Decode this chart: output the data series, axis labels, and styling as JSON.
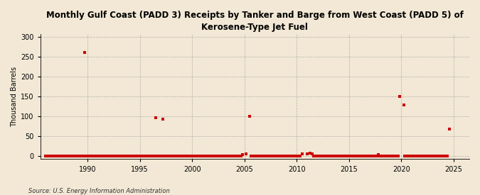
{
  "title": "Monthly Gulf Coast (PADD 3) Receipts by Tanker and Barge from West Coast (PADD 5) of\nKerosene-Type Jet Fuel",
  "ylabel": "Thousand Barrels",
  "source": "Source: U.S. Energy Information Administration",
  "background_color": "#f2e8d5",
  "plot_bg_color": "#f2e8d5",
  "marker_color": "#cc0000",
  "marker_size": 3,
  "ylim": [
    -8,
    308
  ],
  "yticks": [
    0,
    50,
    100,
    150,
    200,
    250,
    300
  ],
  "xlim": [
    1985.5,
    2026.5
  ],
  "xticks": [
    1990,
    1995,
    2000,
    2005,
    2010,
    2015,
    2020,
    2025
  ],
  "data_points": [
    [
      1986.0,
      0
    ],
    [
      1986.1,
      0
    ],
    [
      1986.2,
      0
    ],
    [
      1986.3,
      0
    ],
    [
      1986.4,
      0
    ],
    [
      1986.5,
      0
    ],
    [
      1986.6,
      0
    ],
    [
      1986.7,
      0
    ],
    [
      1986.8,
      0
    ],
    [
      1986.9,
      0
    ],
    [
      1987.0,
      0
    ],
    [
      1987.1,
      0
    ],
    [
      1987.2,
      0
    ],
    [
      1987.3,
      0
    ],
    [
      1987.4,
      0
    ],
    [
      1987.5,
      0
    ],
    [
      1987.6,
      0
    ],
    [
      1987.7,
      0
    ],
    [
      1987.8,
      0
    ],
    [
      1987.9,
      0
    ],
    [
      1988.0,
      0
    ],
    [
      1988.1,
      0
    ],
    [
      1988.2,
      0
    ],
    [
      1988.3,
      0
    ],
    [
      1988.4,
      0
    ],
    [
      1988.5,
      0
    ],
    [
      1988.6,
      0
    ],
    [
      1988.7,
      0
    ],
    [
      1988.8,
      0
    ],
    [
      1988.9,
      0
    ],
    [
      1989.0,
      0
    ],
    [
      1989.1,
      0
    ],
    [
      1989.2,
      0
    ],
    [
      1989.3,
      0
    ],
    [
      1989.4,
      0
    ],
    [
      1989.5,
      0
    ],
    [
      1989.6,
      0
    ],
    [
      1989.7,
      0
    ],
    [
      1989.8,
      0
    ],
    [
      1989.9,
      0
    ],
    [
      1989.75,
      260
    ],
    [
      1990.0,
      0
    ],
    [
      1990.1,
      0
    ],
    [
      1990.2,
      0
    ],
    [
      1990.3,
      0
    ],
    [
      1990.4,
      0
    ],
    [
      1990.5,
      0
    ],
    [
      1990.6,
      0
    ],
    [
      1990.7,
      0
    ],
    [
      1990.8,
      0
    ],
    [
      1990.9,
      0
    ],
    [
      1991.0,
      0
    ],
    [
      1991.1,
      0
    ],
    [
      1991.2,
      0
    ],
    [
      1991.3,
      0
    ],
    [
      1991.4,
      0
    ],
    [
      1991.5,
      0
    ],
    [
      1991.6,
      0
    ],
    [
      1991.7,
      0
    ],
    [
      1991.8,
      0
    ],
    [
      1991.9,
      0
    ],
    [
      1992.0,
      0
    ],
    [
      1992.1,
      0
    ],
    [
      1992.2,
      0
    ],
    [
      1992.3,
      0
    ],
    [
      1992.4,
      0
    ],
    [
      1992.5,
      0
    ],
    [
      1992.6,
      0
    ],
    [
      1992.7,
      0
    ],
    [
      1992.8,
      0
    ],
    [
      1992.9,
      0
    ],
    [
      1993.0,
      0
    ],
    [
      1993.1,
      0
    ],
    [
      1993.2,
      0
    ],
    [
      1993.3,
      0
    ],
    [
      1993.4,
      0
    ],
    [
      1993.5,
      0
    ],
    [
      1993.6,
      0
    ],
    [
      1993.7,
      0
    ],
    [
      1993.8,
      0
    ],
    [
      1993.9,
      0
    ],
    [
      1994.0,
      0
    ],
    [
      1994.1,
      0
    ],
    [
      1994.2,
      0
    ],
    [
      1994.3,
      0
    ],
    [
      1994.4,
      0
    ],
    [
      1994.5,
      0
    ],
    [
      1994.6,
      0
    ],
    [
      1994.7,
      0
    ],
    [
      1994.8,
      0
    ],
    [
      1994.9,
      0
    ],
    [
      1995.0,
      0
    ],
    [
      1995.1,
      0
    ],
    [
      1995.2,
      0
    ],
    [
      1995.3,
      0
    ],
    [
      1995.4,
      0
    ],
    [
      1995.5,
      0
    ],
    [
      1995.6,
      0
    ],
    [
      1995.7,
      0
    ],
    [
      1995.8,
      0
    ],
    [
      1995.9,
      0
    ],
    [
      1996.0,
      0
    ],
    [
      1996.1,
      0
    ],
    [
      1996.2,
      0
    ],
    [
      1996.3,
      0
    ],
    [
      1996.4,
      0
    ],
    [
      1996.5,
      97
    ],
    [
      1997.2,
      93
    ],
    [
      1996.6,
      0
    ],
    [
      1996.7,
      0
    ],
    [
      1996.8,
      0
    ],
    [
      1996.9,
      0
    ],
    [
      1997.0,
      0
    ],
    [
      1997.3,
      0
    ],
    [
      1997.4,
      0
    ],
    [
      1997.5,
      0
    ],
    [
      1997.6,
      0
    ],
    [
      1997.7,
      0
    ],
    [
      1997.8,
      0
    ],
    [
      1997.9,
      0
    ],
    [
      1998.0,
      0
    ],
    [
      1998.1,
      0
    ],
    [
      1998.2,
      0
    ],
    [
      1998.3,
      0
    ],
    [
      1998.4,
      0
    ],
    [
      1998.5,
      0
    ],
    [
      1998.6,
      0
    ],
    [
      1998.7,
      0
    ],
    [
      1998.8,
      0
    ],
    [
      1998.9,
      0
    ],
    [
      1999.0,
      0
    ],
    [
      1999.1,
      0
    ],
    [
      1999.2,
      0
    ],
    [
      1999.3,
      0
    ],
    [
      1999.4,
      0
    ],
    [
      1999.5,
      0
    ],
    [
      1999.6,
      0
    ],
    [
      1999.7,
      0
    ],
    [
      1999.8,
      0
    ],
    [
      1999.9,
      0
    ],
    [
      2000.0,
      0
    ],
    [
      2000.1,
      0
    ],
    [
      2000.2,
      0
    ],
    [
      2000.3,
      0
    ],
    [
      2000.4,
      0
    ],
    [
      2000.5,
      0
    ],
    [
      2000.6,
      0
    ],
    [
      2000.7,
      0
    ],
    [
      2000.8,
      0
    ],
    [
      2000.9,
      0
    ],
    [
      2001.0,
      0
    ],
    [
      2001.1,
      0
    ],
    [
      2001.2,
      0
    ],
    [
      2001.3,
      0
    ],
    [
      2001.4,
      0
    ],
    [
      2001.5,
      0
    ],
    [
      2001.6,
      0
    ],
    [
      2001.7,
      0
    ],
    [
      2001.8,
      0
    ],
    [
      2001.9,
      0
    ],
    [
      2002.0,
      0
    ],
    [
      2002.1,
      0
    ],
    [
      2002.2,
      0
    ],
    [
      2002.3,
      0
    ],
    [
      2002.4,
      0
    ],
    [
      2002.5,
      0
    ],
    [
      2002.6,
      0
    ],
    [
      2002.7,
      0
    ],
    [
      2002.8,
      0
    ],
    [
      2002.9,
      0
    ],
    [
      2003.0,
      0
    ],
    [
      2003.1,
      0
    ],
    [
      2003.2,
      0
    ],
    [
      2003.3,
      0
    ],
    [
      2003.4,
      0
    ],
    [
      2003.5,
      0
    ],
    [
      2003.6,
      0
    ],
    [
      2003.7,
      0
    ],
    [
      2003.8,
      0
    ],
    [
      2003.9,
      0
    ],
    [
      2004.0,
      0
    ],
    [
      2004.1,
      0
    ],
    [
      2004.2,
      0
    ],
    [
      2004.3,
      0
    ],
    [
      2004.4,
      0
    ],
    [
      2004.5,
      0
    ],
    [
      2004.6,
      0
    ],
    [
      2004.7,
      0
    ],
    [
      2004.83,
      3
    ],
    [
      2005.17,
      5
    ],
    [
      2005.5,
      100
    ],
    [
      2005.6,
      0
    ],
    [
      2005.7,
      0
    ],
    [
      2005.8,
      0
    ],
    [
      2005.9,
      0
    ],
    [
      2006.0,
      0
    ],
    [
      2006.1,
      0
    ],
    [
      2006.2,
      0
    ],
    [
      2006.3,
      0
    ],
    [
      2006.4,
      0
    ],
    [
      2006.5,
      0
    ],
    [
      2006.6,
      0
    ],
    [
      2006.7,
      0
    ],
    [
      2006.8,
      0
    ],
    [
      2006.9,
      0
    ],
    [
      2007.0,
      0
    ],
    [
      2007.1,
      0
    ],
    [
      2007.2,
      0
    ],
    [
      2007.3,
      0
    ],
    [
      2007.4,
      0
    ],
    [
      2007.5,
      0
    ],
    [
      2007.6,
      0
    ],
    [
      2007.7,
      0
    ],
    [
      2007.8,
      0
    ],
    [
      2007.9,
      0
    ],
    [
      2008.0,
      0
    ],
    [
      2008.1,
      0
    ],
    [
      2008.2,
      0
    ],
    [
      2008.3,
      0
    ],
    [
      2008.4,
      0
    ],
    [
      2008.5,
      0
    ],
    [
      2008.6,
      0
    ],
    [
      2008.7,
      0
    ],
    [
      2008.8,
      0
    ],
    [
      2008.9,
      0
    ],
    [
      2009.0,
      0
    ],
    [
      2009.1,
      0
    ],
    [
      2009.2,
      0
    ],
    [
      2009.3,
      0
    ],
    [
      2009.4,
      0
    ],
    [
      2009.5,
      0
    ],
    [
      2009.6,
      0
    ],
    [
      2009.7,
      0
    ],
    [
      2009.8,
      0
    ],
    [
      2009.9,
      0
    ],
    [
      2010.0,
      0
    ],
    [
      2010.1,
      0
    ],
    [
      2010.2,
      0
    ],
    [
      2010.3,
      0
    ],
    [
      2010.5,
      5
    ],
    [
      2011.0,
      6
    ],
    [
      2011.25,
      8
    ],
    [
      2011.5,
      5
    ],
    [
      2011.6,
      0
    ],
    [
      2011.7,
      0
    ],
    [
      2011.8,
      0
    ],
    [
      2011.9,
      0
    ],
    [
      2012.0,
      0
    ],
    [
      2012.1,
      0
    ],
    [
      2012.2,
      0
    ],
    [
      2012.3,
      0
    ],
    [
      2012.4,
      0
    ],
    [
      2012.5,
      0
    ],
    [
      2012.6,
      0
    ],
    [
      2012.7,
      0
    ],
    [
      2012.8,
      0
    ],
    [
      2012.9,
      0
    ],
    [
      2013.0,
      0
    ],
    [
      2013.1,
      0
    ],
    [
      2013.2,
      0
    ],
    [
      2013.3,
      0
    ],
    [
      2013.4,
      0
    ],
    [
      2013.5,
      0
    ],
    [
      2013.6,
      0
    ],
    [
      2013.7,
      0
    ],
    [
      2013.8,
      0
    ],
    [
      2013.9,
      0
    ],
    [
      2014.0,
      0
    ],
    [
      2014.1,
      0
    ],
    [
      2014.2,
      0
    ],
    [
      2014.3,
      0
    ],
    [
      2014.4,
      0
    ],
    [
      2014.5,
      0
    ],
    [
      2014.6,
      0
    ],
    [
      2014.7,
      0
    ],
    [
      2014.8,
      0
    ],
    [
      2014.9,
      0
    ],
    [
      2015.0,
      0
    ],
    [
      2015.1,
      0
    ],
    [
      2015.2,
      0
    ],
    [
      2015.3,
      0
    ],
    [
      2015.4,
      0
    ],
    [
      2015.5,
      0
    ],
    [
      2015.6,
      0
    ],
    [
      2015.7,
      0
    ],
    [
      2015.8,
      0
    ],
    [
      2015.9,
      0
    ],
    [
      2016.0,
      0
    ],
    [
      2016.1,
      0
    ],
    [
      2016.2,
      0
    ],
    [
      2016.3,
      0
    ],
    [
      2016.4,
      0
    ],
    [
      2016.5,
      0
    ],
    [
      2016.6,
      0
    ],
    [
      2016.7,
      0
    ],
    [
      2016.8,
      0
    ],
    [
      2016.9,
      0
    ],
    [
      2017.0,
      0
    ],
    [
      2017.1,
      0
    ],
    [
      2017.2,
      0
    ],
    [
      2017.3,
      0
    ],
    [
      2017.4,
      0
    ],
    [
      2017.5,
      0
    ],
    [
      2017.6,
      0
    ],
    [
      2017.7,
      0
    ],
    [
      2017.83,
      3
    ],
    [
      2017.9,
      0
    ],
    [
      2018.0,
      0
    ],
    [
      2018.1,
      0
    ],
    [
      2018.2,
      0
    ],
    [
      2018.3,
      0
    ],
    [
      2018.4,
      0
    ],
    [
      2018.5,
      0
    ],
    [
      2018.6,
      0
    ],
    [
      2018.7,
      0
    ],
    [
      2018.8,
      0
    ],
    [
      2018.9,
      0
    ],
    [
      2019.0,
      0
    ],
    [
      2019.1,
      0
    ],
    [
      2019.2,
      0
    ],
    [
      2019.3,
      0
    ],
    [
      2019.4,
      0
    ],
    [
      2019.5,
      0
    ],
    [
      2019.6,
      0
    ],
    [
      2019.7,
      0
    ],
    [
      2019.83,
      150
    ],
    [
      2020.25,
      128
    ],
    [
      2020.3,
      0
    ],
    [
      2020.4,
      0
    ],
    [
      2020.5,
      0
    ],
    [
      2020.6,
      0
    ],
    [
      2020.7,
      0
    ],
    [
      2020.8,
      0
    ],
    [
      2020.9,
      0
    ],
    [
      2021.0,
      0
    ],
    [
      2021.1,
      0
    ],
    [
      2021.2,
      0
    ],
    [
      2021.3,
      0
    ],
    [
      2021.4,
      0
    ],
    [
      2021.5,
      0
    ],
    [
      2021.6,
      0
    ],
    [
      2021.7,
      0
    ],
    [
      2021.8,
      0
    ],
    [
      2021.9,
      0
    ],
    [
      2022.0,
      0
    ],
    [
      2022.1,
      0
    ],
    [
      2022.2,
      0
    ],
    [
      2022.3,
      0
    ],
    [
      2022.4,
      0
    ],
    [
      2022.5,
      0
    ],
    [
      2022.6,
      0
    ],
    [
      2022.7,
      0
    ],
    [
      2022.8,
      0
    ],
    [
      2022.9,
      0
    ],
    [
      2023.0,
      0
    ],
    [
      2023.1,
      0
    ],
    [
      2023.2,
      0
    ],
    [
      2023.3,
      0
    ],
    [
      2023.4,
      0
    ],
    [
      2023.5,
      0
    ],
    [
      2023.6,
      0
    ],
    [
      2023.7,
      0
    ],
    [
      2023.8,
      0
    ],
    [
      2023.9,
      0
    ],
    [
      2024.0,
      0
    ],
    [
      2024.1,
      0
    ],
    [
      2024.2,
      0
    ],
    [
      2024.3,
      0
    ],
    [
      2024.4,
      0
    ],
    [
      2024.58,
      68
    ]
  ]
}
